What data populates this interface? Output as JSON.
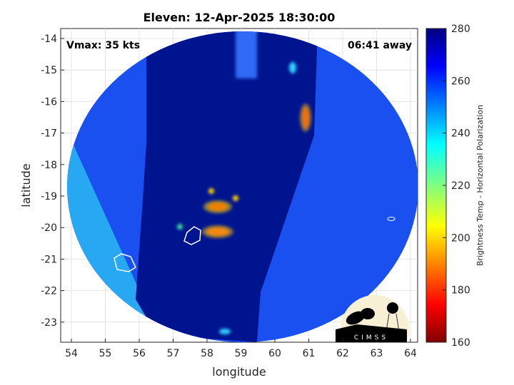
{
  "title": "Eleven: 12-Apr-2025 18:30:00",
  "annotations": {
    "vmax": "Vmax: 35 kts",
    "time_away": "06:41 away"
  },
  "xaxis": {
    "label": "longitude",
    "ticks": [
      "54",
      "55",
      "56",
      "57",
      "58",
      "59",
      "60",
      "61",
      "62",
      "63",
      "64"
    ],
    "range": [
      53.7,
      64.2
    ]
  },
  "yaxis": {
    "label": "latitude",
    "ticks": [
      "-14",
      "-15",
      "-16",
      "-17",
      "-18",
      "-19",
      "-20",
      "-21",
      "-22",
      "-23"
    ],
    "range": [
      -23.6,
      -13.7
    ]
  },
  "colorbar": {
    "label": "Brightness Temp - Horizontal Polarization",
    "ticks": [
      "280",
      "260",
      "240",
      "220",
      "200",
      "180",
      "160"
    ],
    "range": [
      160,
      280
    ],
    "colormap": "jet"
  },
  "logo": {
    "text": "CIMSS"
  },
  "colors": {
    "background_field": "#1a4ff0",
    "dark_swath": "#00128f",
    "edge_strip": "#25b4f2",
    "cold_core": "#e0200a"
  }
}
